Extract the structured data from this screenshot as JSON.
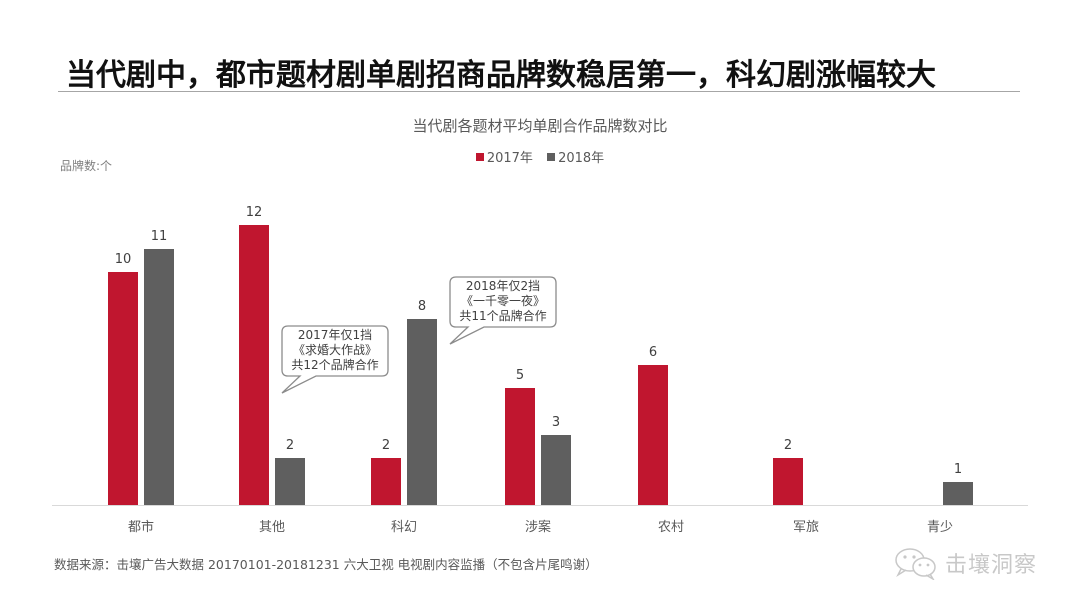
{
  "header": {
    "title": "当代剧中，都市题材剧单剧招商品牌数稳居第一，科幻剧涨幅较大"
  },
  "colors": {
    "series_2017": "#c0162f",
    "series_2018": "#5f5f5f",
    "axis": "#d9d9d9",
    "text": "#595959"
  },
  "chart_data": {
    "type": "bar",
    "title": "当代剧各题材平均单剧合作品牌数对比",
    "ylabel": "品牌数:个",
    "xlabel": "",
    "categories": [
      "都市",
      "其他",
      "科幻",
      "涉案",
      "农村",
      "军旅",
      "青少"
    ],
    "series": [
      {
        "name": "2017年",
        "values": [
          10,
          12,
          2,
          5,
          6,
          2,
          null
        ]
      },
      {
        "name": "2018年",
        "values": [
          11,
          2,
          8,
          3,
          null,
          null,
          1
        ]
      }
    ],
    "ylim": [
      0,
      12
    ],
    "grid": false,
    "legend_position": "top",
    "data_labels": true,
    "annotations": [
      {
        "target": "其他 2017年",
        "lines": [
          "2017年仅1挡",
          "《求婚大作战》",
          "共12个品牌合作"
        ]
      },
      {
        "target": "科幻 2018年",
        "lines": [
          "2018年仅2挡",
          "《一千零一夜》",
          "共11个品牌合作"
        ]
      }
    ]
  },
  "legend": {
    "items": [
      {
        "label": "2017年"
      },
      {
        "label": "2018年"
      }
    ]
  },
  "footer": {
    "source": "数据来源：击壤广告大数据 20170101-20181231 六大卫视 电视剧内容监播（不包含片尾鸣谢）",
    "watermark": "击壤洞察",
    "watermark_icon": "wechat-icon"
  }
}
